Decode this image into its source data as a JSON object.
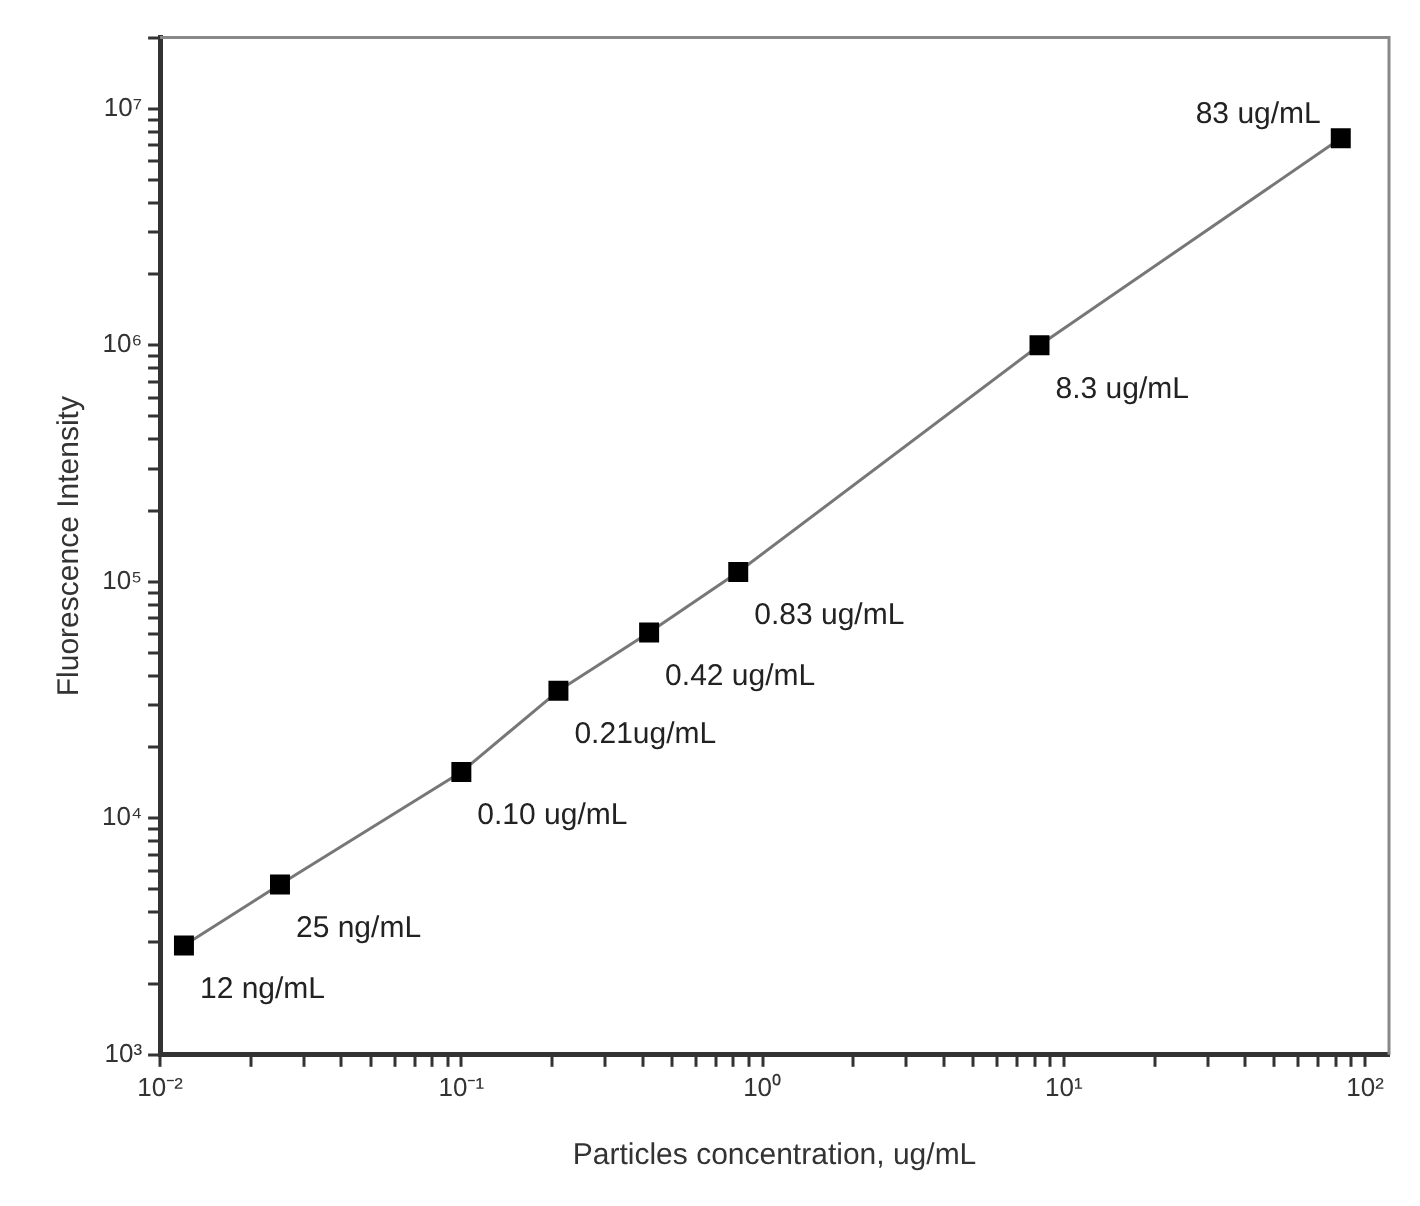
{
  "chart_data": {
    "type": "line",
    "xlabel": "Particles concentration, ug/mL",
    "ylabel": "Fluorescence Intensity",
    "x": [
      0.012,
      0.025,
      0.1,
      0.21,
      0.42,
      0.83,
      8.3,
      83
    ],
    "series": [
      {
        "color": "#000000",
        "values": [
          2900,
          5250,
          15700,
          34600,
          61000,
          110000,
          1000000,
          7500000
        ]
      }
    ],
    "log": "xy",
    "xlim": [
      0.01,
      120
    ],
    "ylim": [
      1000,
      20000000
    ],
    "xticks": [
      {
        "value": 0.01,
        "label": "10⁻²"
      },
      {
        "value": 0.02,
        "label": null
      },
      {
        "value": 0.03,
        "label": null
      },
      {
        "value": 0.04,
        "label": null
      },
      {
        "value": 0.05,
        "label": null
      },
      {
        "value": 0.06,
        "label": null
      },
      {
        "value": 0.07,
        "label": null
      },
      {
        "value": 0.08,
        "label": null
      },
      {
        "value": 0.09,
        "label": null
      },
      {
        "value": 0.1,
        "label": "10⁻¹"
      },
      {
        "value": 0.2,
        "label": null
      },
      {
        "value": 0.3,
        "label": null
      },
      {
        "value": 0.4,
        "label": null
      },
      {
        "value": 0.5,
        "label": null
      },
      {
        "value": 0.6,
        "label": null
      },
      {
        "value": 0.7,
        "label": null
      },
      {
        "value": 0.8,
        "label": null
      },
      {
        "value": 0.9,
        "label": null
      },
      {
        "value": 1,
        "label": "10⁰"
      },
      {
        "value": 2,
        "label": null
      },
      {
        "value": 3,
        "label": null
      },
      {
        "value": 4,
        "label": null
      },
      {
        "value": 5,
        "label": null
      },
      {
        "value": 6,
        "label": null
      },
      {
        "value": 7,
        "label": null
      },
      {
        "value": 8,
        "label": null
      },
      {
        "value": 9,
        "label": null
      },
      {
        "value": 10,
        "label": "10¹"
      },
      {
        "value": 20,
        "label": null
      },
      {
        "value": 30,
        "label": null
      },
      {
        "value": 40,
        "label": null
      },
      {
        "value": 50,
        "label": null
      },
      {
        "value": 60,
        "label": null
      },
      {
        "value": 70,
        "label": null
      },
      {
        "value": 80,
        "label": null
      },
      {
        "value": 90,
        "label": null
      },
      {
        "value": 100,
        "label": "10²"
      }
    ],
    "yticks": [
      {
        "value": 1000,
        "label": "10³"
      },
      {
        "value": 2000,
        "label": null
      },
      {
        "value": 3000,
        "label": null
      },
      {
        "value": 4000,
        "label": null
      },
      {
        "value": 5000,
        "label": null
      },
      {
        "value": 6000,
        "label": null
      },
      {
        "value": 7000,
        "label": null
      },
      {
        "value": 8000,
        "label": null
      },
      {
        "value": 9000,
        "label": null
      },
      {
        "value": 10000,
        "label": "10⁴"
      },
      {
        "value": 20000,
        "label": null
      },
      {
        "value": 30000,
        "label": null
      },
      {
        "value": 40000,
        "label": null
      },
      {
        "value": 50000,
        "label": null
      },
      {
        "value": 60000,
        "label": null
      },
      {
        "value": 70000,
        "label": null
      },
      {
        "value": 80000,
        "label": null
      },
      {
        "value": 90000,
        "label": null
      },
      {
        "value": 100000,
        "label": "10⁵"
      },
      {
        "value": 200000,
        "label": null
      },
      {
        "value": 300000,
        "label": null
      },
      {
        "value": 400000,
        "label": null
      },
      {
        "value": 500000,
        "label": null
      },
      {
        "value": 600000,
        "label": null
      },
      {
        "value": 700000,
        "label": null
      },
      {
        "value": 800000,
        "label": null
      },
      {
        "value": 900000,
        "label": null
      },
      {
        "value": 1000000,
        "label": "10⁶"
      },
      {
        "value": 2000000,
        "label": null
      },
      {
        "value": 3000000,
        "label": null
      },
      {
        "value": 4000000,
        "label": null
      },
      {
        "value": 5000000,
        "label": null
      },
      {
        "value": 6000000,
        "label": null
      },
      {
        "value": 7000000,
        "label": null
      },
      {
        "value": 8000000,
        "label": null
      },
      {
        "value": 9000000,
        "label": null
      },
      {
        "value": 10000000,
        "label": "10⁷"
      },
      {
        "value": 20000000,
        "label": null
      }
    ],
    "marker": "square",
    "line_style": "solid",
    "grid": false,
    "legend": false,
    "annotations": [
      {
        "text": "12 ng/mL",
        "x": 0.012,
        "y": 2900
      },
      {
        "text": "25 ng/mL",
        "x": 0.025,
        "y": 5250
      },
      {
        "text": "0.10 ug/mL",
        "x": 0.1,
        "y": 15700
      },
      {
        "text": "0.21ug/mL",
        "x": 0.21,
        "y": 34600
      },
      {
        "text": "0.42 ug/mL",
        "x": 0.42,
        "y": 61000
      },
      {
        "text": "0.83 ug/mL",
        "x": 0.83,
        "y": 110000
      },
      {
        "text": "8.3 ug/mL",
        "x": 8.3,
        "y": 1000000
      },
      {
        "text": "83 ug/mL",
        "x": 83,
        "y": 7500000
      }
    ]
  }
}
